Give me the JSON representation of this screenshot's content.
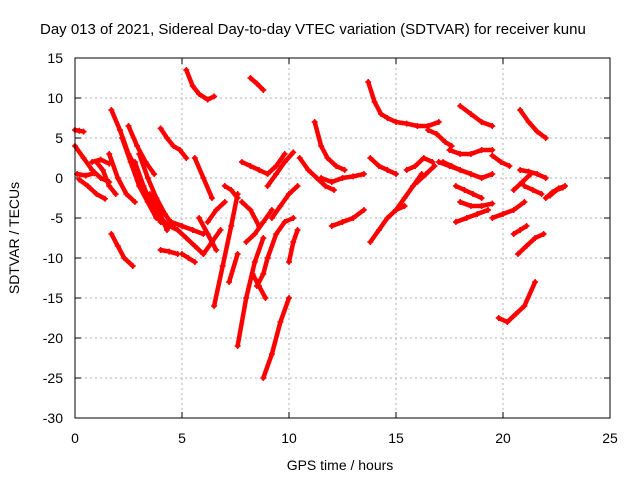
{
  "chart_data": {
    "type": "scatter",
    "title": "Day 013 of 2021, Sidereal Day-to-day VTEC variation (SDTVAR) for receiver kunu",
    "xlabel": "GPS time / hours",
    "ylabel": "SDTVAR / TECUs",
    "xlim": [
      0,
      25
    ],
    "ylim": [
      -30,
      15
    ],
    "xticks": [
      "0",
      "5",
      "10",
      "15",
      "20",
      "25"
    ],
    "yticks": [
      "15",
      "10",
      "5",
      "0",
      "-5",
      "-10",
      "-15",
      "-20",
      "-25",
      "-30"
    ],
    "grid": true,
    "marker": "plus",
    "color": "#ff0000",
    "series": [
      {
        "name": "s01",
        "x": [
          0.0,
          0.2,
          0.4
        ],
        "y": [
          6.0,
          5.9,
          5.8
        ]
      },
      {
        "name": "s02",
        "x": [
          0.0,
          0.4,
          0.8,
          1.2,
          1.6
        ],
        "y": [
          4.0,
          2.5,
          1.0,
          0.0,
          -0.5
        ]
      },
      {
        "name": "s03",
        "x": [
          0.2,
          0.6,
          1.0,
          1.4
        ],
        "y": [
          -0.2,
          -1.0,
          -2.0,
          -2.6
        ]
      },
      {
        "name": "s04",
        "x": [
          0.8,
          1.2,
          1.6
        ],
        "y": [
          2.0,
          2.3,
          1.8
        ]
      },
      {
        "name": "s05",
        "x": [
          0.1,
          0.5,
          0.9
        ],
        "y": [
          0.5,
          0.3,
          0.6
        ]
      },
      {
        "name": "s06",
        "x": [
          1.0,
          1.3,
          1.6,
          1.9
        ],
        "y": [
          2.0,
          1.0,
          -1.0,
          -2.0
        ]
      },
      {
        "name": "s07",
        "x": [
          1.6,
          2.0,
          2.4,
          2.8
        ],
        "y": [
          3.0,
          0.0,
          -2.0,
          -3.0
        ]
      },
      {
        "name": "s08",
        "x": [
          1.7,
          2.1,
          2.5,
          2.9
        ],
        "y": [
          8.5,
          6.0,
          3.0,
          1.0
        ]
      },
      {
        "name": "s09",
        "x": [
          2.2,
          2.6,
          3.0,
          3.4,
          3.8
        ],
        "y": [
          5.0,
          2.0,
          -1.0,
          -3.0,
          -5.0
        ]
      },
      {
        "name": "s10",
        "x": [
          2.8,
          3.2,
          3.6,
          4.0,
          4.4
        ],
        "y": [
          2.0,
          -1.0,
          -3.5,
          -5.5,
          -6.0
        ]
      },
      {
        "name": "s11",
        "x": [
          2.5,
          2.9,
          3.3,
          3.7
        ],
        "y": [
          6.5,
          4.0,
          2.0,
          0.5
        ]
      },
      {
        "name": "s12",
        "x": [
          3.0,
          3.4,
          3.8,
          4.2,
          4.6
        ],
        "y": [
          3.0,
          0.0,
          -2.5,
          -4.5,
          -6.0
        ]
      },
      {
        "name": "s13",
        "x": [
          3.5,
          3.9,
          4.3
        ],
        "y": [
          -2.0,
          -4.0,
          -6.5
        ]
      },
      {
        "name": "s14",
        "x": [
          4.0,
          4.3,
          4.6,
          4.9,
          5.2
        ],
        "y": [
          6.2,
          5.0,
          4.0,
          3.5,
          2.5
        ]
      },
      {
        "name": "s15",
        "x": [
          4.0,
          4.4,
          4.8,
          5.2,
          5.6,
          6.0
        ],
        "y": [
          -5.0,
          -6.0,
          -6.5,
          -7.5,
          -8.5,
          -9.5
        ]
      },
      {
        "name": "s16",
        "x": [
          4.5,
          5.0,
          5.5,
          6.0
        ],
        "y": [
          -5.5,
          -6.0,
          -6.5,
          -7.0
        ]
      },
      {
        "name": "s17",
        "x": [
          4.0,
          4.4,
          4.8
        ],
        "y": [
          -9.0,
          -9.2,
          -9.5
        ]
      },
      {
        "name": "s18",
        "x": [
          5.0,
          5.3,
          5.6
        ],
        "y": [
          -9.5,
          -10.0,
          -10.5
        ]
      },
      {
        "name": "s19",
        "x": [
          5.2,
          5.5,
          5.8,
          6.2,
          6.5
        ],
        "y": [
          13.5,
          11.5,
          10.5,
          9.8,
          10.2
        ]
      },
      {
        "name": "s20",
        "x": [
          5.6,
          6.0,
          6.4
        ],
        "y": [
          2.5,
          0.0,
          -2.5
        ]
      },
      {
        "name": "s21",
        "x": [
          5.8,
          6.2,
          6.6
        ],
        "y": [
          -5.0,
          -7.0,
          -9.0
        ]
      },
      {
        "name": "s22",
        "x": [
          6.2,
          6.6,
          7.0
        ],
        "y": [
          -5.5,
          -4.0,
          -3.0
        ]
      },
      {
        "name": "s23",
        "x": [
          6.0,
          6.4,
          6.8
        ],
        "y": [
          -9.5,
          -8.0,
          -6.5
        ]
      },
      {
        "name": "s24",
        "x": [
          1.7,
          2.0,
          2.3,
          2.7
        ],
        "y": [
          -7.0,
          -8.5,
          -10.0,
          -11.0
        ]
      },
      {
        "name": "s25",
        "x": [
          6.5,
          6.9,
          7.3,
          7.6
        ],
        "y": [
          -16.0,
          -11.0,
          -6.0,
          -2.0
        ]
      },
      {
        "name": "s26",
        "x": [
          7.0,
          7.3,
          7.6
        ],
        "y": [
          -1.0,
          -1.5,
          -2.5
        ]
      },
      {
        "name": "s27",
        "x": [
          7.6,
          8.0,
          8.4,
          8.8
        ],
        "y": [
          -21.0,
          -15.0,
          -10.5,
          -7.5
        ]
      },
      {
        "name": "s28",
        "x": [
          7.2,
          7.6
        ],
        "y": [
          -13.0,
          -9.5
        ]
      },
      {
        "name": "s29",
        "x": [
          8.5,
          8.8,
          9.0
        ],
        "y": [
          -13.5,
          -12.0,
          -10.0
        ]
      },
      {
        "name": "s30",
        "x": [
          8.8,
          9.2,
          9.6,
          10.0
        ],
        "y": [
          -25.0,
          -22.0,
          -18.0,
          -15.0
        ]
      },
      {
        "name": "s31",
        "x": [
          9.0,
          9.4,
          9.8,
          10.2
        ],
        "y": [
          -10.0,
          -7.0,
          -5.5,
          -5.0
        ]
      },
      {
        "name": "s32",
        "x": [
          10.0,
          10.2,
          10.4
        ],
        "y": [
          -10.5,
          -8.0,
          -6.5
        ]
      },
      {
        "name": "s33",
        "x": [
          8.3,
          8.6,
          8.9
        ],
        "y": [
          -12.0,
          -13.5,
          -15.0
        ]
      },
      {
        "name": "s34",
        "x": [
          8.2,
          8.5,
          8.8
        ],
        "y": [
          12.5,
          11.8,
          11.0
        ]
      },
      {
        "name": "s35",
        "x": [
          7.8,
          8.2,
          8.6
        ],
        "y": [
          -3.0,
          -4.0,
          -6.0
        ]
      },
      {
        "name": "s36",
        "x": [
          8.0,
          8.4,
          8.8,
          9.2
        ],
        "y": [
          -8.0,
          -7.0,
          -5.5,
          -4.0
        ]
      },
      {
        "name": "s37",
        "x": [
          7.8,
          8.2,
          8.6,
          9.0,
          9.4,
          9.8
        ],
        "y": [
          2.0,
          1.5,
          1.0,
          0.5,
          1.5,
          3.0
        ]
      },
      {
        "name": "s38",
        "x": [
          9.0,
          9.4,
          9.8,
          10.2
        ],
        "y": [
          -1.0,
          0.5,
          2.0,
          3.2
        ]
      },
      {
        "name": "s39",
        "x": [
          9.2,
          9.6,
          10.0,
          10.4
        ],
        "y": [
          -5.0,
          -3.5,
          -2.0,
          -1.0
        ]
      },
      {
        "name": "s40",
        "x": [
          11.2,
          11.5,
          11.8,
          12.2,
          12.6
        ],
        "y": [
          7.0,
          4.0,
          2.5,
          1.5,
          1.0
        ]
      },
      {
        "name": "s41",
        "x": [
          10.5,
          10.9,
          11.3,
          11.7,
          12.1
        ],
        "y": [
          2.5,
          1.0,
          0.0,
          -1.0,
          -1.5
        ]
      },
      {
        "name": "s42",
        "x": [
          11.5,
          12.0,
          12.5,
          13.0,
          13.5
        ],
        "y": [
          0.0,
          -0.5,
          0.0,
          0.2,
          0.5
        ]
      },
      {
        "name": "s43",
        "x": [
          12.0,
          12.5,
          13.0,
          13.5
        ],
        "y": [
          -6.0,
          -5.5,
          -5.0,
          -4.0
        ]
      },
      {
        "name": "s44",
        "x": [
          13.7,
          14.0,
          14.3,
          14.6,
          15.0,
          15.5,
          16.0,
          16.5,
          17.0
        ],
        "y": [
          12.0,
          9.5,
          8.0,
          7.5,
          7.0,
          6.8,
          6.5,
          6.5,
          7.0
        ]
      },
      {
        "name": "s45",
        "x": [
          13.8,
          14.2,
          14.6,
          15.0
        ],
        "y": [
          2.5,
          1.5,
          1.0,
          0.5
        ]
      },
      {
        "name": "s46",
        "x": [
          13.8,
          14.2,
          14.6,
          15.0,
          15.4
        ],
        "y": [
          -8.0,
          -6.5,
          -5.0,
          -4.0,
          -3.5
        ]
      },
      {
        "name": "s47",
        "x": [
          15.0,
          15.4,
          15.8,
          16.2
        ],
        "y": [
          -4.0,
          -2.5,
          -1.0,
          0.5
        ]
      },
      {
        "name": "s48",
        "x": [
          15.5,
          15.9,
          16.3,
          16.7
        ],
        "y": [
          1.0,
          1.5,
          2.5,
          2.0
        ]
      },
      {
        "name": "s49",
        "x": [
          16.0,
          16.4,
          16.8
        ],
        "y": [
          -0.5,
          0.5,
          1.5
        ]
      },
      {
        "name": "s50",
        "x": [
          16.5,
          16.9,
          17.3,
          17.6
        ],
        "y": [
          6.0,
          5.5,
          4.5,
          4.0
        ]
      },
      {
        "name": "s51",
        "x": [
          17.2,
          17.6,
          18.0
        ],
        "y": [
          2.0,
          1.5,
          1.0
        ]
      },
      {
        "name": "s52",
        "x": [
          17.8,
          18.2,
          18.6,
          19.0
        ],
        "y": [
          -1.0,
          -1.5,
          -2.0,
          -2.5
        ]
      },
      {
        "name": "s53",
        "x": [
          17.0,
          17.5,
          18.0,
          18.5,
          19.0,
          19.5
        ],
        "y": [
          2.0,
          1.5,
          1.0,
          0.5,
          0.0,
          0.5
        ]
      },
      {
        "name": "s54",
        "x": [
          18.0,
          18.5,
          19.0,
          19.5
        ],
        "y": [
          9.0,
          8.0,
          7.0,
          6.5
        ]
      },
      {
        "name": "s55",
        "x": [
          17.5,
          18.0,
          18.5,
          19.0,
          19.5
        ],
        "y": [
          3.5,
          3.0,
          3.0,
          3.5,
          3.5
        ]
      },
      {
        "name": "s56",
        "x": [
          19.5,
          19.9,
          20.3
        ],
        "y": [
          2.8,
          2.0,
          1.5
        ]
      },
      {
        "name": "s57",
        "x": [
          18.0,
          18.5,
          19.0,
          19.5
        ],
        "y": [
          -3.0,
          -3.5,
          -3.5,
          -3.2
        ]
      },
      {
        "name": "s58",
        "x": [
          17.8,
          18.3,
          18.8,
          19.3
        ],
        "y": [
          -5.5,
          -5.0,
          -4.5,
          -4.0
        ]
      },
      {
        "name": "s59",
        "x": [
          19.5,
          20.0,
          20.5,
          21.0
        ],
        "y": [
          -5.0,
          -4.5,
          -4.0,
          -3.0
        ]
      },
      {
        "name": "s60",
        "x": [
          20.5,
          20.8,
          21.1
        ],
        "y": [
          -7.0,
          -6.5,
          -6.0
        ]
      },
      {
        "name": "s61",
        "x": [
          20.7,
          21.1,
          21.5,
          21.9
        ],
        "y": [
          -9.5,
          -8.5,
          -7.5,
          -7.0
        ]
      },
      {
        "name": "s62",
        "x": [
          19.8,
          20.2,
          20.6,
          21.0,
          21.5
        ],
        "y": [
          -17.5,
          -18.0,
          -17.0,
          -16.0,
          -13.0
        ]
      },
      {
        "name": "s63",
        "x": [
          20.5,
          20.9,
          21.3
        ],
        "y": [
          -1.5,
          -0.5,
          0.5
        ]
      },
      {
        "name": "s64",
        "x": [
          20.8,
          21.2,
          21.6,
          22.0
        ],
        "y": [
          1.0,
          0.8,
          0.5,
          0.0
        ]
      },
      {
        "name": "s65",
        "x": [
          20.8,
          21.2,
          21.6,
          22.0
        ],
        "y": [
          8.5,
          7.0,
          5.8,
          5.0
        ]
      },
      {
        "name": "s66",
        "x": [
          21.0,
          21.4,
          21.8
        ],
        "y": [
          -1.0,
          -1.5,
          -2.0
        ]
      },
      {
        "name": "s67",
        "x": [
          22.0,
          22.3,
          22.6,
          22.9
        ],
        "y": [
          -2.5,
          -1.8,
          -1.3,
          -1.0
        ]
      },
      {
        "name": "s68",
        "x": [
          22.2,
          22.5,
          22.8
        ],
        "y": [
          -2.2,
          -1.5,
          -1.2
        ]
      }
    ]
  }
}
